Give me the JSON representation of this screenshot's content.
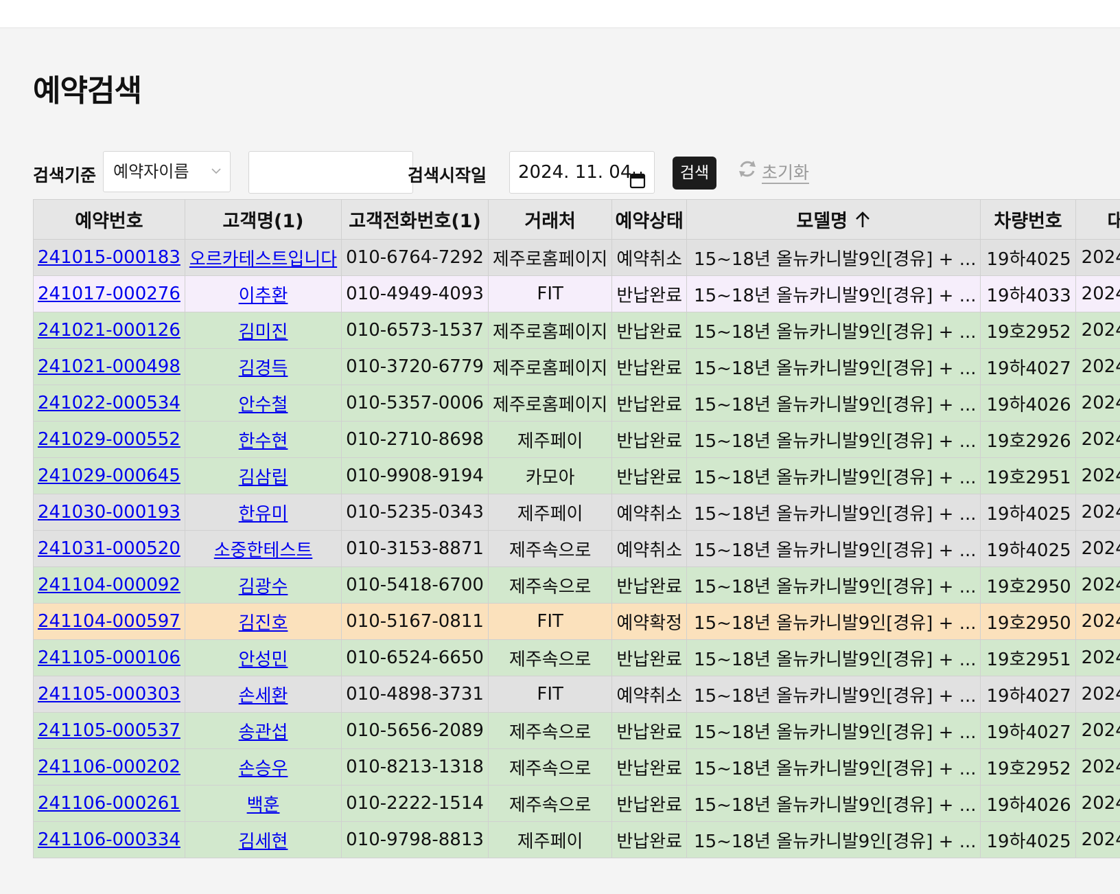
{
  "page": {
    "title": "예약검색"
  },
  "filters": {
    "criteria_label": "검색기준",
    "criteria_value": "예약자이름",
    "keyword_value": "",
    "start_date_label": "검색시작일",
    "start_date_value": "2024. 11. 04",
    "search_button": "검색",
    "reset_link": "초기화"
  },
  "table": {
    "columns": [
      "예약번호",
      "고객명(1)",
      "고객전화번호(1)",
      "거래처",
      "예약상태",
      "모델명",
      "차량번호",
      "대"
    ],
    "sort": {
      "column": "모델명",
      "direction": "ascending",
      "icon": "arrow-up-icon"
    },
    "rows": [
      {
        "status_color": "cancel",
        "reservation_no": "241015-000183",
        "customer": "오르카테스트입니다",
        "phone": "010-6764-7292",
        "partner": "제주로홈페이지",
        "status": "예약취소",
        "model": "15~18년 올뉴카니발9인[경유] + ...",
        "plate": "19하4025",
        "date": "2024-"
      },
      {
        "status_color": "pink",
        "reservation_no": "241017-000276",
        "customer": "이추환",
        "phone": "010-4949-4093",
        "partner": "FIT",
        "status": "반납완료",
        "model": "15~18년 올뉴카니발9인[경유] + ...",
        "plate": "19하4033",
        "date": "2024-"
      },
      {
        "status_color": "return",
        "reservation_no": "241021-000126",
        "customer": "김미진",
        "phone": "010-6573-1537",
        "partner": "제주로홈페이지",
        "status": "반납완료",
        "model": "15~18년 올뉴카니발9인[경유] + ...",
        "plate": "19호2952",
        "date": "2024-"
      },
      {
        "status_color": "return",
        "reservation_no": "241021-000498",
        "customer": "김경득",
        "phone": "010-3720-6779",
        "partner": "제주로홈페이지",
        "status": "반납완료",
        "model": "15~18년 올뉴카니발9인[경유] + ...",
        "plate": "19하4027",
        "date": "2024-"
      },
      {
        "status_color": "return",
        "reservation_no": "241022-000534",
        "customer": "안수철",
        "phone": "010-5357-0006",
        "partner": "제주로홈페이지",
        "status": "반납완료",
        "model": "15~18년 올뉴카니발9인[경유] + ...",
        "plate": "19하4026",
        "date": "2024-"
      },
      {
        "status_color": "return",
        "reservation_no": "241029-000552",
        "customer": "한수현",
        "phone": "010-2710-8698",
        "partner": "제주페이",
        "status": "반납완료",
        "model": "15~18년 올뉴카니발9인[경유] + ...",
        "plate": "19호2926",
        "date": "2024-"
      },
      {
        "status_color": "return",
        "reservation_no": "241029-000645",
        "customer": "김삼립",
        "phone": "010-9908-9194",
        "partner": "카모아",
        "status": "반납완료",
        "model": "15~18년 올뉴카니발9인[경유] + ...",
        "plate": "19호2951",
        "date": "2024-"
      },
      {
        "status_color": "cancel",
        "reservation_no": "241030-000193",
        "customer": "한유미",
        "phone": "010-5235-0343",
        "partner": "제주페이",
        "status": "예약취소",
        "model": "15~18년 올뉴카니발9인[경유] + ...",
        "plate": "19하4025",
        "date": "2024-"
      },
      {
        "status_color": "cancel",
        "reservation_no": "241031-000520",
        "customer": "소중한테스트",
        "phone": "010-3153-8871",
        "partner": "제주속으로",
        "status": "예약취소",
        "model": "15~18년 올뉴카니발9인[경유] + ...",
        "plate": "19하4025",
        "date": "2024-"
      },
      {
        "status_color": "return",
        "reservation_no": "241104-000092",
        "customer": "김광수",
        "phone": "010-5418-6700",
        "partner": "제주속으로",
        "status": "반납완료",
        "model": "15~18년 올뉴카니발9인[경유] + ...",
        "plate": "19호2950",
        "date": "2024-"
      },
      {
        "status_color": "confirm",
        "reservation_no": "241104-000597",
        "customer": "김진호",
        "phone": "010-5167-0811",
        "partner": "FIT",
        "status": "예약확정",
        "model": "15~18년 올뉴카니발9인[경유] + ...",
        "plate": "19호2950",
        "date": "2024-"
      },
      {
        "status_color": "return",
        "reservation_no": "241105-000106",
        "customer": "안성민",
        "phone": "010-6524-6650",
        "partner": "제주속으로",
        "status": "반납완료",
        "model": "15~18년 올뉴카니발9인[경유] + ...",
        "plate": "19호2951",
        "date": "2024-"
      },
      {
        "status_color": "cancel",
        "reservation_no": "241105-000303",
        "customer": "손세환",
        "phone": "010-4898-3731",
        "partner": "FIT",
        "status": "예약취소",
        "model": "15~18년 올뉴카니발9인[경유] + ...",
        "plate": "19하4027",
        "date": "2024-"
      },
      {
        "status_color": "return",
        "reservation_no": "241105-000537",
        "customer": "송관섭",
        "phone": "010-5656-2089",
        "partner": "제주속으로",
        "status": "반납완료",
        "model": "15~18년 올뉴카니발9인[경유] + ...",
        "plate": "19하4027",
        "date": "2024-"
      },
      {
        "status_color": "return",
        "reservation_no": "241106-000202",
        "customer": "손승우",
        "phone": "010-8213-1318",
        "partner": "제주속으로",
        "status": "반납완료",
        "model": "15~18년 올뉴카니발9인[경유] + ...",
        "plate": "19호2952",
        "date": "2024-"
      },
      {
        "status_color": "return",
        "reservation_no": "241106-000261",
        "customer": "백훈",
        "phone": "010-2222-1514",
        "partner": "제주속으로",
        "status": "반납완료",
        "model": "15~18년 올뉴카니발9인[경유] + ...",
        "plate": "19하4026",
        "date": "2024-"
      },
      {
        "status_color": "return",
        "reservation_no": "241106-000334",
        "customer": "김세현",
        "phone": "010-9798-8813",
        "partner": "제주페이",
        "status": "반납완료",
        "model": "15~18년 올뉴카니발9인[경유] + ...",
        "plate": "19하4025",
        "date": "2024-"
      }
    ]
  },
  "colors": {
    "cancel": "#e1e1e1",
    "return": "#d2e8cd",
    "confirm": "#fbe1bc",
    "pink": "#f6eefb",
    "link": "#0000ee",
    "header_bg": "#e6e6e6"
  }
}
